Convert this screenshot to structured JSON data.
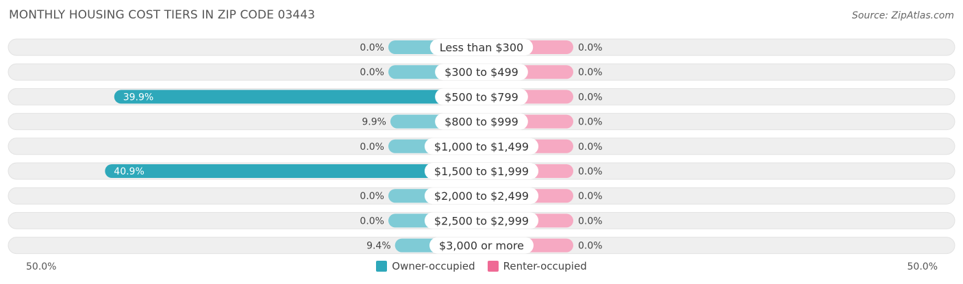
{
  "title": "MONTHLY HOUSING COST TIERS IN ZIP CODE 03443",
  "source": "Source: ZipAtlas.com",
  "axis": {
    "left_label": "50.0%",
    "right_label": "50.0%"
  },
  "legend": [
    {
      "label": "Owner-occupied",
      "color": "#2ea8ba"
    },
    {
      "label": "Renter-occupied",
      "color": "#ef6a95"
    }
  ],
  "colors": {
    "owner_strong": "#2ea8ba",
    "owner_light": "#7fcbd6",
    "renter_light": "#f6a9c2",
    "track": "#efefef"
  },
  "chart_data": {
    "type": "bar",
    "orientation": "diverging-horizontal",
    "xlim": [
      -50,
      50
    ],
    "categories": [
      "Less than $300",
      "$300 to $499",
      "$500 to $799",
      "$800 to $999",
      "$1,000 to $1,499",
      "$1,500 to $1,999",
      "$2,000 to $2,499",
      "$2,500 to $2,999",
      "$3,000 or more"
    ],
    "series": [
      {
        "name": "Owner-occupied",
        "values": [
          0.0,
          0.0,
          39.9,
          9.9,
          0.0,
          40.9,
          0.0,
          0.0,
          9.4
        ],
        "labels": [
          "0.0%",
          "0.0%",
          "39.9%",
          "9.9%",
          "0.0%",
          "40.9%",
          "0.0%",
          "0.0%",
          "9.4%"
        ]
      },
      {
        "name": "Renter-occupied",
        "values": [
          0.0,
          0.0,
          0.0,
          0.0,
          0.0,
          0.0,
          0.0,
          0.0,
          0.0
        ],
        "labels": [
          "0.0%",
          "0.0%",
          "0.0%",
          "0.0%",
          "0.0%",
          "0.0%",
          "0.0%",
          "0.0%",
          "0.0%"
        ]
      }
    ]
  }
}
